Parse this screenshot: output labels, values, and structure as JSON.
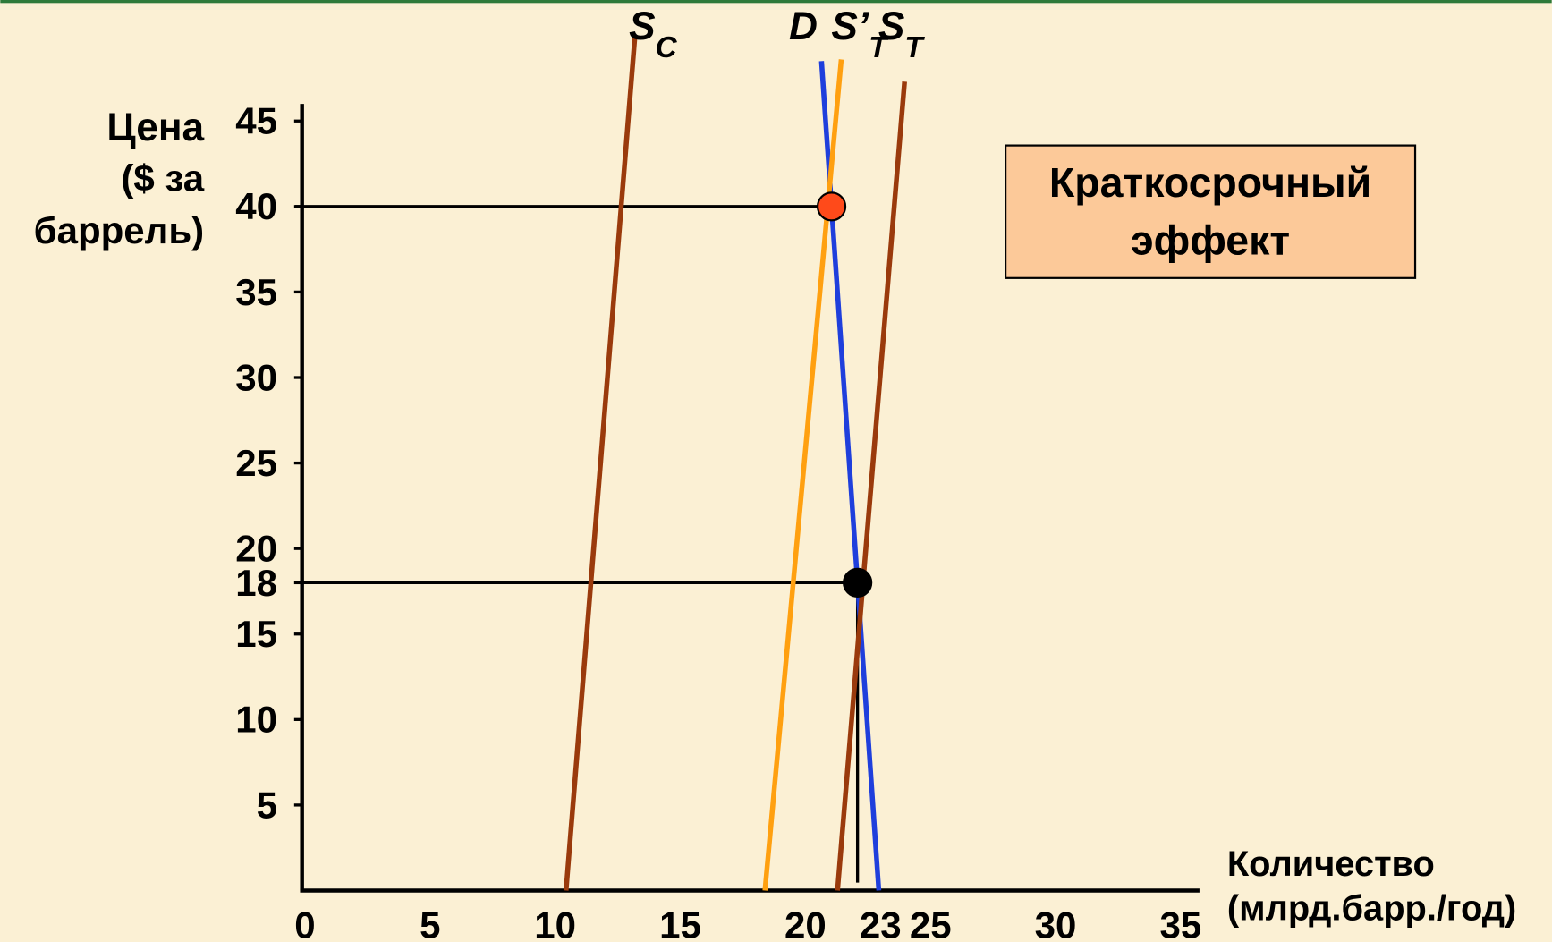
{
  "chart_data": {
    "type": "line",
    "annotation": [
      "Краткосрочный",
      "эффект"
    ],
    "y_label": [
      "Цена",
      "($ за",
      "баррель)"
    ],
    "x_label": [
      "Количество",
      "(млрд.барр./год)"
    ],
    "xlim": [
      0,
      35
    ],
    "ylim": [
      0,
      46
    ],
    "xticks": [
      0,
      5,
      10,
      15,
      20,
      23,
      25,
      30,
      35
    ],
    "yticks": [
      5,
      10,
      15,
      18,
      20,
      25,
      30,
      35,
      40,
      45
    ],
    "series": [
      {
        "name": "S",
        "subscript": "C",
        "color": "#9a3a0c",
        "x": [
          10.75,
          13.5
        ],
        "values": [
          0,
          49.9
        ]
      },
      {
        "name": "D",
        "subscript": null,
        "color": "#1f3fdc",
        "x": [
          20.96,
          23.25
        ],
        "values": [
          48.5,
          0
        ]
      },
      {
        "name": "S’",
        "subscript": "T",
        "color": "#ffa010",
        "x": [
          21.75,
          18.7
        ],
        "values": [
          48.6,
          0
        ]
      },
      {
        "name": "S",
        "subscript": "T",
        "color": "#9a3a0c",
        "x": [
          24.28,
          21.6
        ],
        "values": [
          47.3,
          0
        ]
      }
    ],
    "points": [
      {
        "x": 21.36,
        "y": 40,
        "color": "#ff4a1a"
      },
      {
        "x": 22.4,
        "y": 18,
        "color": "#000000"
      }
    ]
  }
}
